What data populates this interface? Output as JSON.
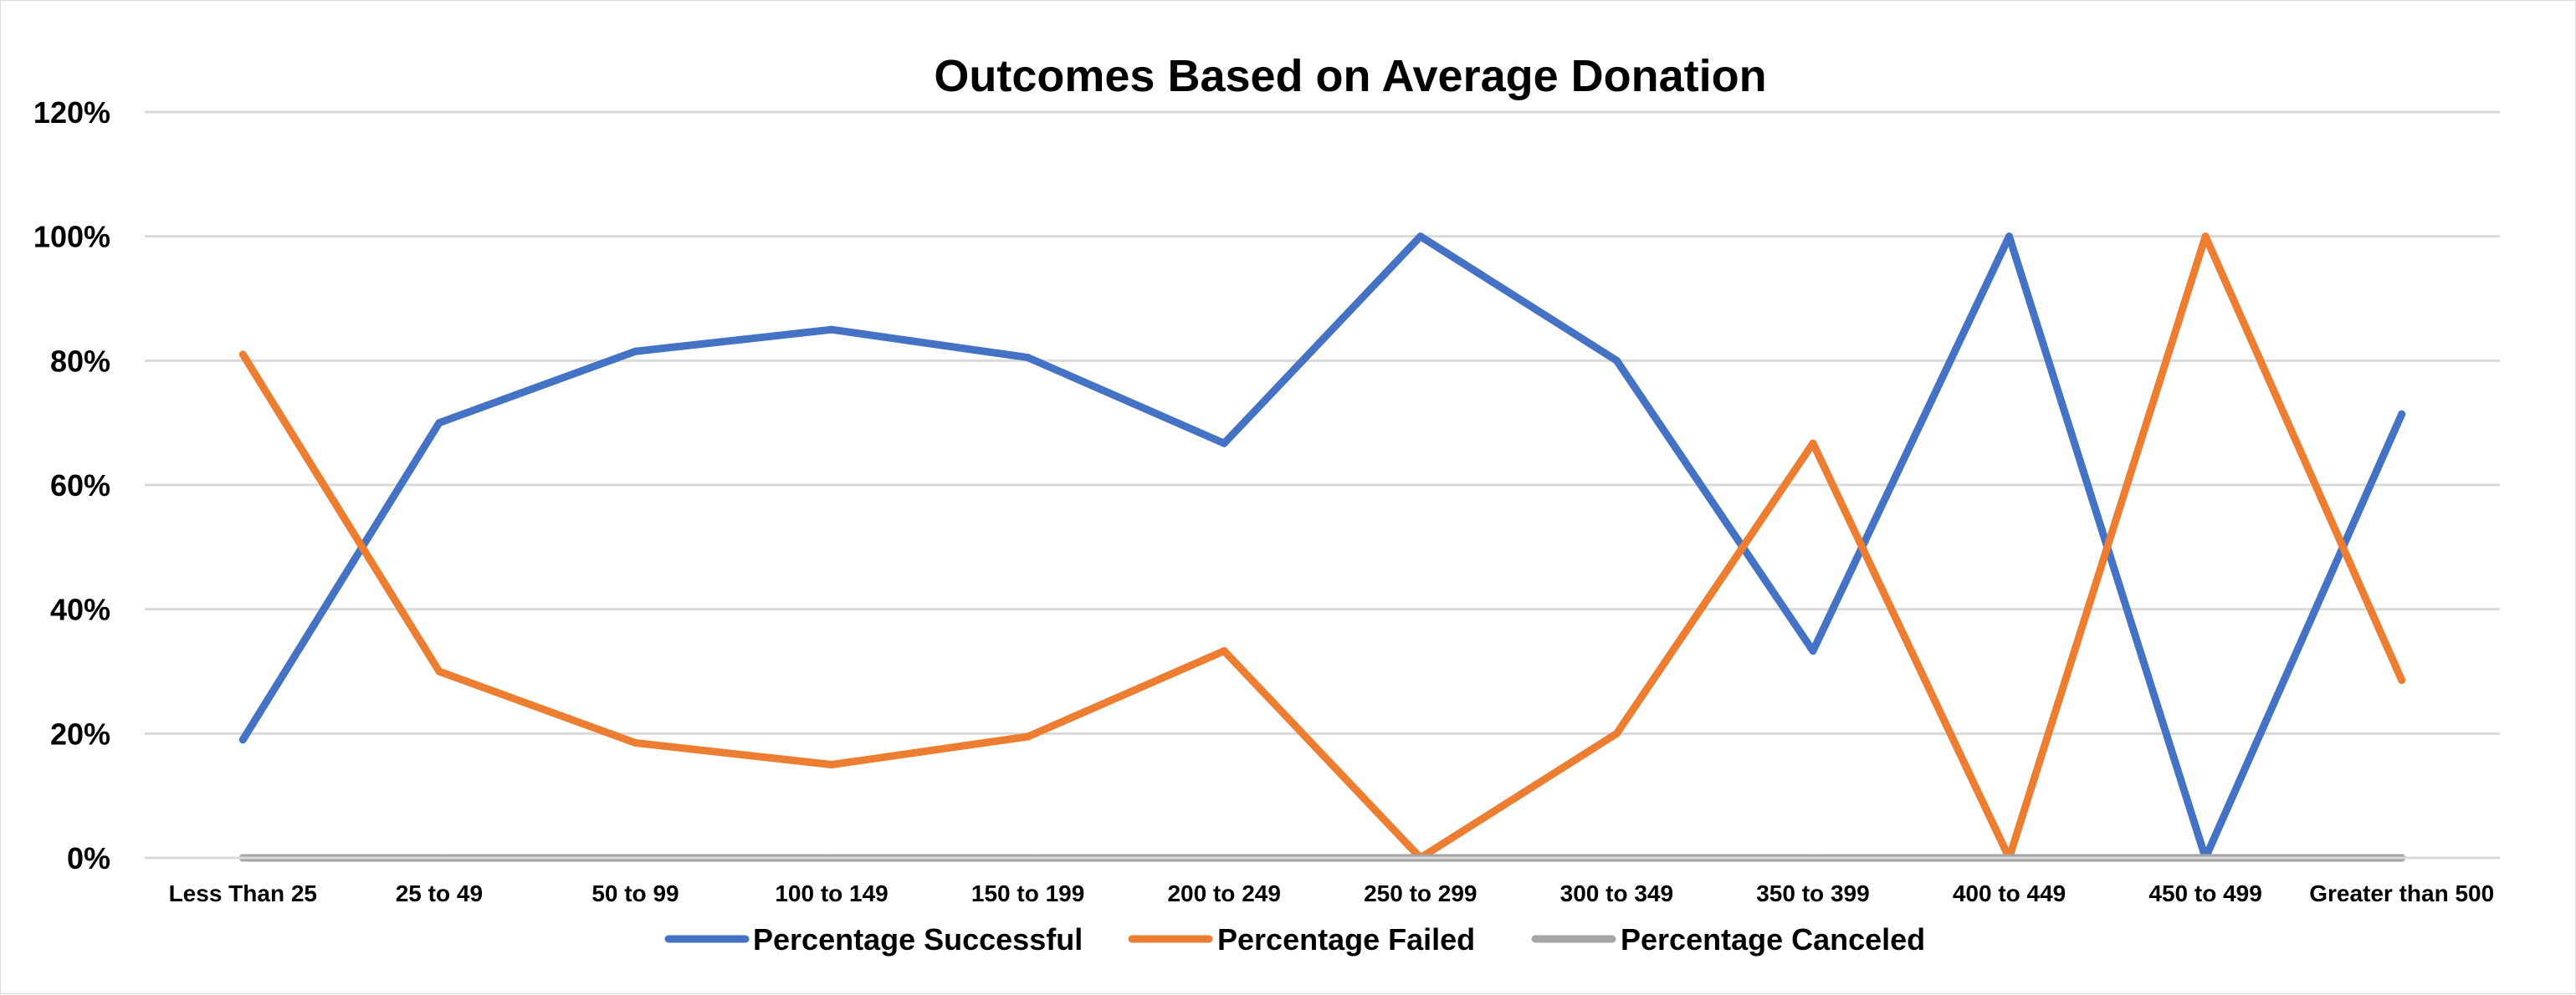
{
  "chart_data": {
    "type": "line",
    "title": "Outcomes Based on Average Donation",
    "xlabel": "",
    "ylabel": "",
    "ylim": [
      0,
      1.2
    ],
    "y_ticks": [
      0,
      0.2,
      0.4,
      0.6,
      0.8,
      1.0,
      1.2
    ],
    "y_tick_labels": [
      "0%",
      "20%",
      "40%",
      "60%",
      "80%",
      "100%",
      "120%"
    ],
    "grid": true,
    "legend": "bottom",
    "categories": [
      "Less Than 25",
      "25 to 49",
      "50 to 99",
      "100 to 149",
      "150 to 199",
      "200 to 249",
      "250 to 299",
      "300 to 349",
      "350 to 399",
      "400 to 449",
      "450 to 499",
      "Greater than 500"
    ],
    "series": [
      {
        "name": "Percentage Successful",
        "color": "#4472C4",
        "values": [
          0.19,
          0.7,
          0.815,
          0.85,
          0.805,
          0.667,
          1.0,
          0.8,
          0.333,
          1.0,
          0.0,
          0.714
        ]
      },
      {
        "name": "Percentage Failed",
        "color": "#ED7D31",
        "values": [
          0.81,
          0.3,
          0.185,
          0.15,
          0.195,
          0.333,
          0.0,
          0.2,
          0.667,
          0.0,
          1.0,
          0.286
        ]
      },
      {
        "name": "Percentage Canceled",
        "color": "#A5A5A5",
        "values": [
          0,
          0,
          0,
          0,
          0,
          0,
          0,
          0,
          0,
          0,
          0,
          0
        ]
      }
    ]
  }
}
